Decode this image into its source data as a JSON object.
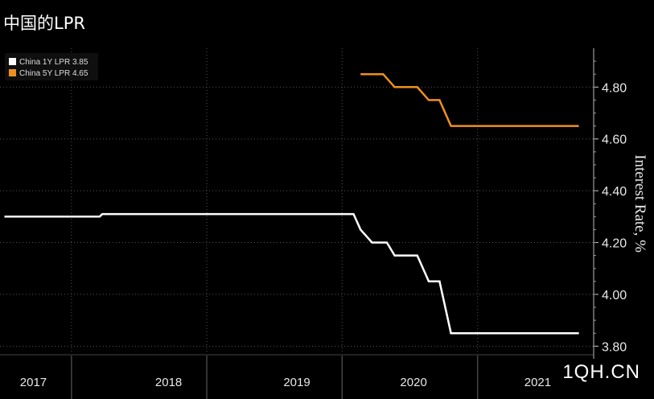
{
  "chart_data": {
    "type": "line",
    "title": "中国的LPR",
    "ylabel": "Interest Rate, %",
    "ylim": [
      3.77,
      4.95
    ],
    "y_ticks": [
      "3.80",
      "4.00",
      "4.20",
      "4.40",
      "4.60",
      "4.80"
    ],
    "x_tick_labels": [
      "2017",
      "2018",
      "2019",
      "2020",
      "2021"
    ],
    "legend_position": "top-left",
    "grid": true,
    "series": [
      {
        "name": "China 1Y LPR",
        "label": "China 1Y LPR 3.85",
        "color": "#ffffff",
        "points": [
          [
            "2017-01-01",
            4.3
          ],
          [
            "2017-09-15",
            4.3
          ],
          [
            "2017-09-22",
            4.31
          ],
          [
            "2019-08-01",
            4.31
          ],
          [
            "2019-08-20",
            4.25
          ],
          [
            "2019-09-20",
            4.2
          ],
          [
            "2019-10-30",
            4.2
          ],
          [
            "2019-11-20",
            4.15
          ],
          [
            "2020-01-20",
            4.15
          ],
          [
            "2020-02-20",
            4.05
          ],
          [
            "2020-03-20",
            4.05
          ],
          [
            "2020-04-20",
            3.85
          ],
          [
            "2021-03-31",
            3.85
          ]
        ]
      },
      {
        "name": "China 5Y LPR",
        "label": "China 5Y LPR 4.65",
        "color": "#f0901e",
        "points": [
          [
            "2019-08-20",
            4.85
          ],
          [
            "2019-10-20",
            4.85
          ],
          [
            "2019-11-20",
            4.8
          ],
          [
            "2020-01-20",
            4.8
          ],
          [
            "2020-02-20",
            4.75
          ],
          [
            "2020-03-20",
            4.75
          ],
          [
            "2020-04-20",
            4.65
          ],
          [
            "2021-03-31",
            4.65
          ]
        ]
      }
    ]
  },
  "watermark": "1QH.CN"
}
